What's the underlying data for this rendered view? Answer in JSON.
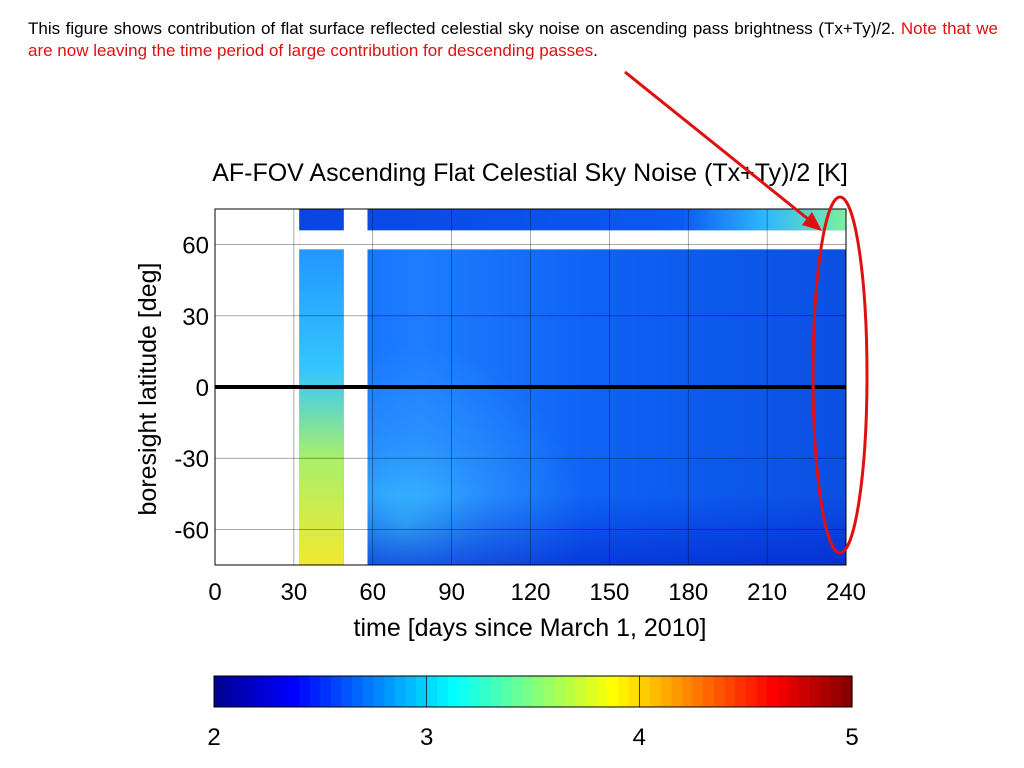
{
  "caption": {
    "text": "This figure shows contribution of flat surface reflected celestial sky noise on ascending pass brightness (Tx+Ty)/2.",
    "note": "Note that we are now leaving the time period of large contribution for descending passes",
    "end": "."
  },
  "colors": {
    "note_text": "#e01010",
    "annotation": "#e01010",
    "colormap": [
      "#00008f",
      "#0000ff",
      "#0080ff",
      "#00ffff",
      "#80ff80",
      "#ffff00",
      "#ff8000",
      "#ff0000",
      "#800000"
    ]
  },
  "chart_data": {
    "type": "heatmap",
    "title": "AF-FOV Ascending Flat Celestial Sky Noise (Tx+Ty)/2 [K]",
    "xlabel": "time [days since March 1, 2010]",
    "ylabel": "boresight latitude [deg]",
    "xlim": [
      0,
      240
    ],
    "ylim": [
      -75,
      75
    ],
    "xticks": [
      "0",
      "30",
      "60",
      "90",
      "120",
      "150",
      "180",
      "210",
      "240"
    ],
    "yticks": [
      "60",
      "30",
      "0",
      "-30",
      "-60"
    ],
    "ytick_values": [
      60,
      30,
      0,
      -30,
      -60
    ],
    "xtick_values": [
      0,
      30,
      60,
      90,
      120,
      150,
      180,
      210,
      240
    ],
    "grid": true,
    "reference_line": {
      "y": 0
    },
    "data_extent": {
      "x": [
        32,
        240
      ]
    },
    "gaps": [
      {
        "x": [
          0,
          32
        ],
        "y": [
          -75,
          75
        ]
      },
      {
        "x": [
          49,
          58
        ],
        "y": [
          -75,
          75
        ]
      },
      {
        "x": [
          32,
          240
        ],
        "y": [
          58,
          66
        ]
      }
    ],
    "colorbar": {
      "range": [
        2,
        5
      ],
      "ticks": [
        "2",
        "3",
        "4",
        "5"
      ],
      "tick_values": [
        2,
        3,
        4,
        5
      ]
    }
  }
}
